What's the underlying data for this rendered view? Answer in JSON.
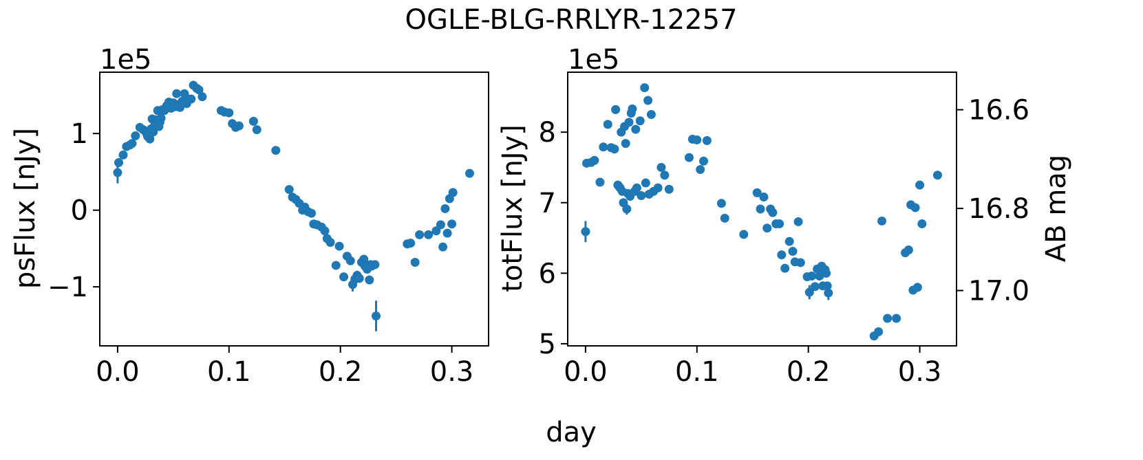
{
  "suptitle": "OGLE-BLG-RRLYR-12257",
  "xlabel": "day",
  "colors": {
    "marker": "#1f77b4",
    "axes": "#000000",
    "background": "#ffffff"
  },
  "chart_data": [
    {
      "type": "scatter",
      "panel": "left",
      "ylabel": "psFlux [nJy]",
      "offset_text": "1e5",
      "y_scale_factor": 100000,
      "xlim": [
        -0.016,
        0.333
      ],
      "ylim": [
        -1.77,
        1.8
      ],
      "xticks": [
        0.0,
        0.1,
        0.2,
        0.3
      ],
      "xtick_labels": [
        "0.0",
        "0.1",
        "0.2",
        "0.3"
      ],
      "yticks": [
        -1,
        0,
        1
      ],
      "ytick_labels": [
        "−1",
        "0",
        "1"
      ],
      "grid": false,
      "legend": "none",
      "errorbars": true,
      "points": [
        [
          0.0,
          0.49,
          0.14
        ],
        [
          0.001,
          0.62,
          0.05
        ],
        [
          0.005,
          0.72,
          0.04
        ],
        [
          0.008,
          0.83,
          0.04
        ],
        [
          0.011,
          0.85,
          0.03
        ],
        [
          0.013,
          0.87,
          0.03
        ],
        [
          0.016,
          0.97,
          0.03
        ],
        [
          0.02,
          1.08,
          0.03
        ],
        [
          0.023,
          1.05,
          0.03
        ],
        [
          0.026,
          1.0,
          0.03
        ],
        [
          0.027,
          0.96,
          0.03
        ],
        [
          0.028,
          1.03,
          0.05
        ],
        [
          0.029,
          0.93,
          0.06
        ],
        [
          0.03,
          1.06,
          0.04
        ],
        [
          0.031,
          1.19,
          0.04
        ],
        [
          0.032,
          1.02,
          0.03
        ],
        [
          0.033,
          1.1,
          0.03
        ],
        [
          0.034,
          1.18,
          0.03
        ],
        [
          0.035,
          1.13,
          0.04
        ],
        [
          0.036,
          1.3,
          0.04
        ],
        [
          0.037,
          1.09,
          0.03
        ],
        [
          0.038,
          1.15,
          0.03
        ],
        [
          0.039,
          1.2,
          0.03
        ],
        [
          0.04,
          1.31,
          0.03
        ],
        [
          0.042,
          1.3,
          0.03
        ],
        [
          0.044,
          1.36,
          0.03
        ],
        [
          0.045,
          1.34,
          0.03
        ],
        [
          0.046,
          1.41,
          0.03
        ],
        [
          0.048,
          1.33,
          0.03
        ],
        [
          0.049,
          1.39,
          0.03
        ],
        [
          0.05,
          1.4,
          0.03
        ],
        [
          0.052,
          1.35,
          0.03
        ],
        [
          0.053,
          1.52,
          0.03
        ],
        [
          0.055,
          1.38,
          0.03
        ],
        [
          0.056,
          1.34,
          0.03
        ],
        [
          0.058,
          1.42,
          0.03
        ],
        [
          0.06,
          1.52,
          0.03
        ],
        [
          0.062,
          1.39,
          0.03
        ],
        [
          0.063,
          1.45,
          0.03
        ],
        [
          0.066,
          1.45,
          0.03
        ],
        [
          0.068,
          1.63,
          0.03
        ],
        [
          0.071,
          1.59,
          0.03
        ],
        [
          0.073,
          1.57,
          0.03
        ],
        [
          0.076,
          1.48,
          0.03
        ],
        [
          0.093,
          1.3,
          0.03
        ],
        [
          0.096,
          1.28,
          0.03
        ],
        [
          0.1,
          1.27,
          0.03
        ],
        [
          0.103,
          1.13,
          0.03
        ],
        [
          0.106,
          1.08,
          0.03
        ],
        [
          0.109,
          1.1,
          0.03
        ],
        [
          0.122,
          1.16,
          0.03
        ],
        [
          0.125,
          1.05,
          0.03
        ],
        [
          0.142,
          0.78,
          0.03
        ],
        [
          0.154,
          0.27,
          0.03
        ],
        [
          0.157,
          0.17,
          0.03
        ],
        [
          0.16,
          0.14,
          0.03
        ],
        [
          0.163,
          0.09,
          0.03
        ],
        [
          0.166,
          0.0,
          0.03
        ],
        [
          0.168,
          0.04,
          0.03
        ],
        [
          0.171,
          -0.02,
          0.03
        ],
        [
          0.174,
          -0.04,
          0.03
        ],
        [
          0.176,
          -0.18,
          0.03
        ],
        [
          0.179,
          -0.19,
          0.03
        ],
        [
          0.183,
          -0.22,
          0.03
        ],
        [
          0.186,
          -0.27,
          0.03
        ],
        [
          0.188,
          -0.37,
          0.03
        ],
        [
          0.191,
          -0.42,
          0.03
        ],
        [
          0.196,
          -0.72,
          0.03
        ],
        [
          0.199,
          -0.47,
          0.03
        ],
        [
          0.203,
          -0.87,
          0.04
        ],
        [
          0.206,
          -0.6,
          0.03
        ],
        [
          0.209,
          -0.66,
          0.03
        ],
        [
          0.211,
          -0.97,
          0.09
        ],
        [
          0.213,
          -0.9,
          0.05
        ],
        [
          0.215,
          -0.85,
          0.06
        ],
        [
          0.217,
          -0.89,
          0.03
        ],
        [
          0.219,
          -0.68,
          0.03
        ],
        [
          0.221,
          -0.64,
          0.03
        ],
        [
          0.222,
          -0.73,
          0.03
        ],
        [
          0.224,
          -0.77,
          0.03
        ],
        [
          0.226,
          -0.91,
          0.03
        ],
        [
          0.227,
          -0.71,
          0.03
        ],
        [
          0.228,
          -0.73,
          0.03
        ],
        [
          0.229,
          -0.72,
          0.03
        ],
        [
          0.231,
          -0.71,
          0.03
        ],
        [
          0.232,
          -1.38,
          0.2
        ],
        [
          0.26,
          -0.44,
          0.03
        ],
        [
          0.263,
          -0.43,
          0.03
        ],
        [
          0.267,
          -0.68,
          0.03
        ],
        [
          0.271,
          -0.32,
          0.03
        ],
        [
          0.279,
          -0.32,
          0.03
        ],
        [
          0.286,
          -0.27,
          0.03
        ],
        [
          0.29,
          -0.19,
          0.03
        ],
        [
          0.292,
          -0.48,
          0.03
        ],
        [
          0.294,
          0.02,
          0.03
        ],
        [
          0.296,
          -0.3,
          0.03
        ],
        [
          0.298,
          0.15,
          0.03
        ],
        [
          0.3,
          -0.18,
          0.03
        ],
        [
          0.301,
          0.23,
          0.03
        ],
        [
          0.316,
          0.48,
          0.03
        ]
      ]
    },
    {
      "type": "scatter",
      "panel": "right",
      "ylabel": "totFlux [nJy]",
      "y2label": "AB mag",
      "offset_text": "1e5",
      "y_scale_factor": 100000,
      "xlim": [
        -0.016,
        0.333
      ],
      "ylim": [
        4.97,
        8.85
      ],
      "xticks": [
        0.0,
        0.1,
        0.2,
        0.3
      ],
      "xtick_labels": [
        "0.0",
        "0.1",
        "0.2",
        "0.3"
      ],
      "yticks": [
        5,
        6,
        7,
        8
      ],
      "ytick_labels": [
        "5",
        "6",
        "7",
        "8"
      ],
      "y2ticks": [
        16.6,
        16.8,
        17.0
      ],
      "y2tick_labels": [
        "16.6",
        "16.8",
        "17.0"
      ],
      "grid": false,
      "legend": "none",
      "errorbars": true,
      "points": [
        [
          0.0,
          6.59,
          0.15
        ],
        [
          0.001,
          7.56,
          0.04
        ],
        [
          0.005,
          7.57,
          0.04
        ],
        [
          0.008,
          7.6,
          0.04
        ],
        [
          0.013,
          7.29,
          0.04
        ],
        [
          0.016,
          7.79,
          0.04
        ],
        [
          0.02,
          8.11,
          0.04
        ],
        [
          0.023,
          7.78,
          0.04
        ],
        [
          0.026,
          7.76,
          0.04
        ],
        [
          0.027,
          8.32,
          0.04
        ],
        [
          0.029,
          7.25,
          0.05
        ],
        [
          0.03,
          7.23,
          0.04
        ],
        [
          0.031,
          7.21,
          0.04
        ],
        [
          0.032,
          8.0,
          0.05
        ],
        [
          0.033,
          7.16,
          0.04
        ],
        [
          0.034,
          7.0,
          0.05
        ],
        [
          0.035,
          8.08,
          0.04
        ],
        [
          0.036,
          7.84,
          0.04
        ],
        [
          0.037,
          6.91,
          0.08
        ],
        [
          0.038,
          7.13,
          0.04
        ],
        [
          0.039,
          8.14,
          0.04
        ],
        [
          0.04,
          7.09,
          0.04
        ],
        [
          0.041,
          8.27,
          0.04
        ],
        [
          0.042,
          8.33,
          0.04
        ],
        [
          0.044,
          7.16,
          0.04
        ],
        [
          0.045,
          8.04,
          0.04
        ],
        [
          0.046,
          7.21,
          0.04
        ],
        [
          0.049,
          8.16,
          0.04
        ],
        [
          0.05,
          7.1,
          0.04
        ],
        [
          0.053,
          8.63,
          0.04
        ],
        [
          0.054,
          7.28,
          0.04
        ],
        [
          0.056,
          8.45,
          0.04
        ],
        [
          0.057,
          7.12,
          0.04
        ],
        [
          0.059,
          8.25,
          0.04
        ],
        [
          0.061,
          7.16,
          0.04
        ],
        [
          0.065,
          7.21,
          0.04
        ],
        [
          0.068,
          7.5,
          0.04
        ],
        [
          0.071,
          7.39,
          0.04
        ],
        [
          0.075,
          7.19,
          0.04
        ],
        [
          0.093,
          7.64,
          0.04
        ],
        [
          0.096,
          7.9,
          0.04
        ],
        [
          0.1,
          7.89,
          0.04
        ],
        [
          0.103,
          7.47,
          0.04
        ],
        [
          0.106,
          7.59,
          0.04
        ],
        [
          0.109,
          7.88,
          0.04
        ],
        [
          0.122,
          6.99,
          0.04
        ],
        [
          0.125,
          6.78,
          0.04
        ],
        [
          0.142,
          6.55,
          0.04
        ],
        [
          0.154,
          7.14,
          0.04
        ],
        [
          0.157,
          6.91,
          0.04
        ],
        [
          0.16,
          7.08,
          0.04
        ],
        [
          0.163,
          6.64,
          0.04
        ],
        [
          0.166,
          6.91,
          0.04
        ],
        [
          0.168,
          6.86,
          0.04
        ],
        [
          0.171,
          6.7,
          0.04
        ],
        [
          0.174,
          6.7,
          0.04
        ],
        [
          0.176,
          6.26,
          0.04
        ],
        [
          0.179,
          6.07,
          0.04
        ],
        [
          0.183,
          6.45,
          0.04
        ],
        [
          0.186,
          6.31,
          0.04
        ],
        [
          0.188,
          6.16,
          0.04
        ],
        [
          0.191,
          6.73,
          0.04
        ],
        [
          0.193,
          6.15,
          0.04
        ],
        [
          0.199,
          5.95,
          0.04
        ],
        [
          0.201,
          5.73,
          0.1
        ],
        [
          0.203,
          5.96,
          0.04
        ],
        [
          0.206,
          5.81,
          0.04
        ],
        [
          0.208,
          6.06,
          0.04
        ],
        [
          0.21,
          5.96,
          0.04
        ],
        [
          0.212,
          6.1,
          0.04
        ],
        [
          0.213,
          5.82,
          0.04
        ],
        [
          0.215,
          6.05,
          0.04
        ],
        [
          0.216,
          6.0,
          0.04
        ],
        [
          0.217,
          5.82,
          0.04
        ],
        [
          0.218,
          5.72,
          0.1
        ],
        [
          0.259,
          5.11,
          0.04
        ],
        [
          0.263,
          5.17,
          0.04
        ],
        [
          0.266,
          6.74,
          0.04
        ],
        [
          0.271,
          5.36,
          0.04
        ],
        [
          0.279,
          5.36,
          0.04
        ],
        [
          0.287,
          6.29,
          0.04
        ],
        [
          0.29,
          6.33,
          0.04
        ],
        [
          0.292,
          6.97,
          0.04
        ],
        [
          0.294,
          5.76,
          0.04
        ],
        [
          0.296,
          6.93,
          0.04
        ],
        [
          0.298,
          5.8,
          0.04
        ],
        [
          0.3,
          7.25,
          0.04
        ],
        [
          0.302,
          6.7,
          0.04
        ],
        [
          0.316,
          7.39,
          0.04
        ]
      ]
    }
  ]
}
